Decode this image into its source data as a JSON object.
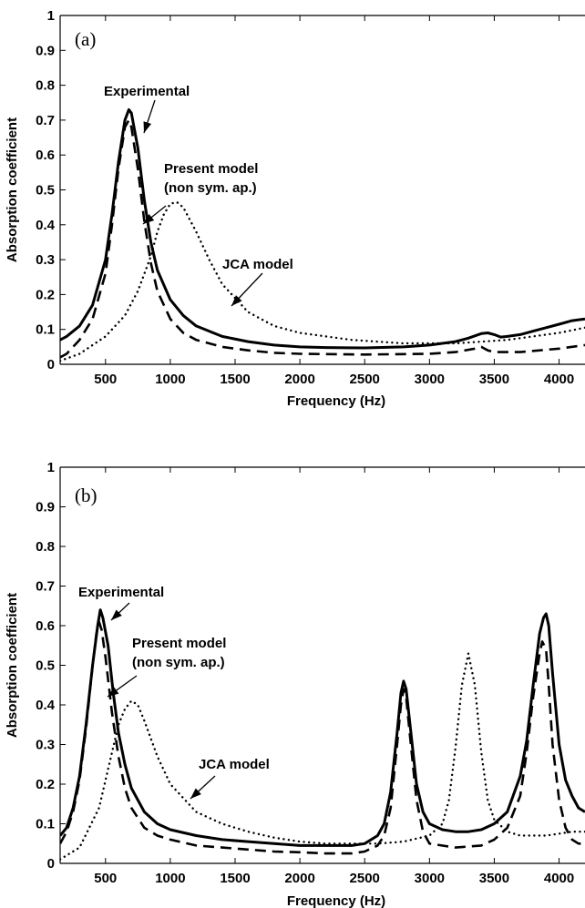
{
  "chart_data": [
    {
      "panel_label": "(a)",
      "type": "line",
      "xlabel": "Frequency (Hz)",
      "ylabel": "Absorption coefficient",
      "xlim": [
        150,
        4200
      ],
      "ylim": [
        0,
        1
      ],
      "xticks": [
        500,
        1000,
        1500,
        2000,
        2500,
        3000,
        3500,
        4000
      ],
      "yticks": [
        0,
        0.1,
        0.2,
        0.3,
        0.4,
        0.5,
        0.6,
        0.7,
        0.8,
        0.9,
        1
      ],
      "grid": false,
      "series": [
        {
          "name": "Experimental",
          "style": "solid",
          "x": [
            150,
            200,
            300,
            400,
            500,
            550,
            600,
            650,
            680,
            700,
            750,
            800,
            850,
            900,
            1000,
            1100,
            1200,
            1400,
            1600,
            1800,
            2000,
            2200,
            2500,
            2800,
            3000,
            3200,
            3300,
            3400,
            3450,
            3500,
            3550,
            3600,
            3700,
            3800,
            3900,
            4000,
            4100,
            4200
          ],
          "y": [
            0.07,
            0.08,
            0.11,
            0.17,
            0.3,
            0.43,
            0.58,
            0.7,
            0.73,
            0.72,
            0.62,
            0.47,
            0.35,
            0.27,
            0.185,
            0.14,
            0.11,
            0.08,
            0.065,
            0.055,
            0.05,
            0.048,
            0.047,
            0.05,
            0.055,
            0.065,
            0.075,
            0.088,
            0.09,
            0.085,
            0.078,
            0.08,
            0.085,
            0.095,
            0.105,
            0.115,
            0.125,
            0.13
          ]
        },
        {
          "name": "Present model (non sym. ap.)",
          "style": "dashed",
          "x": [
            150,
            200,
            300,
            400,
            500,
            550,
            600,
            650,
            680,
            700,
            750,
            800,
            850,
            900,
            1000,
            1100,
            1200,
            1400,
            1600,
            1800,
            2000,
            2500,
            3000,
            3200,
            3350,
            3400,
            3450,
            3500,
            3700,
            4000,
            4200
          ],
          "y": [
            0.02,
            0.03,
            0.07,
            0.13,
            0.26,
            0.4,
            0.56,
            0.68,
            0.7,
            0.68,
            0.56,
            0.41,
            0.29,
            0.21,
            0.13,
            0.09,
            0.07,
            0.05,
            0.04,
            0.033,
            0.03,
            0.028,
            0.03,
            0.035,
            0.045,
            0.05,
            0.04,
            0.035,
            0.035,
            0.045,
            0.055
          ]
        },
        {
          "name": "JCA model",
          "style": "dotted",
          "x": [
            150,
            300,
            500,
            650,
            750,
            850,
            900,
            950,
            1000,
            1050,
            1100,
            1200,
            1300,
            1400,
            1600,
            1800,
            2000,
            2400,
            2800,
            3200,
            3600,
            4000,
            4200
          ],
          "y": [
            0.01,
            0.03,
            0.08,
            0.14,
            0.21,
            0.31,
            0.38,
            0.43,
            0.46,
            0.465,
            0.45,
            0.38,
            0.3,
            0.23,
            0.15,
            0.11,
            0.09,
            0.07,
            0.06,
            0.06,
            0.07,
            0.09,
            0.105
          ]
        }
      ],
      "annotations": [
        {
          "lines": [
            "Experimental"
          ],
          "points_to_x": 680,
          "points_to_y": 0.68
        },
        {
          "lines": [
            "Present model",
            "(non sym. ap.)"
          ],
          "points_to_x": 780,
          "points_to_y": 0.44
        },
        {
          "lines": [
            "JCA model"
          ],
          "points_to_x": 1470,
          "points_to_y": 0.215
        }
      ]
    },
    {
      "panel_label": "(b)",
      "type": "line",
      "xlabel": "Frequency (Hz)",
      "ylabel": "Absorption coefficient",
      "xlim": [
        150,
        4200
      ],
      "ylim": [
        0,
        1
      ],
      "xticks": [
        500,
        1000,
        1500,
        2000,
        2500,
        3000,
        3500,
        4000
      ],
      "yticks": [
        0,
        0.1,
        0.2,
        0.3,
        0.4,
        0.5,
        0.6,
        0.7,
        0.8,
        0.9,
        1
      ],
      "grid": false,
      "series": [
        {
          "name": "Experimental",
          "style": "solid",
          "x": [
            150,
            200,
            250,
            300,
            350,
            400,
            440,
            460,
            480,
            520,
            560,
            600,
            650,
            700,
            800,
            900,
            1000,
            1200,
            1400,
            1600,
            1800,
            2000,
            2200,
            2400,
            2500,
            2600,
            2650,
            2700,
            2750,
            2780,
            2800,
            2820,
            2850,
            2900,
            2950,
            3000,
            3100,
            3200,
            3300,
            3400,
            3500,
            3600,
            3700,
            3750,
            3800,
            3850,
            3880,
            3900,
            3920,
            3950,
            4000,
            4050,
            4100,
            4150,
            4200
          ],
          "y": [
            0.07,
            0.09,
            0.14,
            0.22,
            0.35,
            0.5,
            0.6,
            0.64,
            0.62,
            0.55,
            0.43,
            0.33,
            0.25,
            0.19,
            0.13,
            0.1,
            0.085,
            0.07,
            0.06,
            0.055,
            0.05,
            0.045,
            0.045,
            0.045,
            0.05,
            0.07,
            0.1,
            0.18,
            0.33,
            0.43,
            0.46,
            0.44,
            0.35,
            0.2,
            0.13,
            0.1,
            0.085,
            0.08,
            0.08,
            0.085,
            0.1,
            0.13,
            0.22,
            0.31,
            0.45,
            0.58,
            0.62,
            0.63,
            0.6,
            0.48,
            0.3,
            0.21,
            0.17,
            0.14,
            0.13
          ]
        },
        {
          "name": "Present model (non sym. ap.)",
          "style": "dashed",
          "x": [
            150,
            200,
            250,
            300,
            350,
            400,
            430,
            450,
            470,
            500,
            550,
            600,
            650,
            700,
            800,
            900,
            1000,
            1200,
            1400,
            1600,
            1800,
            2000,
            2200,
            2400,
            2500,
            2600,
            2650,
            2700,
            2750,
            2780,
            2800,
            2820,
            2850,
            2900,
            2950,
            3000,
            3200,
            3400,
            3500,
            3600,
            3700,
            3750,
            3800,
            3850,
            3870,
            3900,
            3920,
            3950,
            4000,
            4050,
            4100,
            4150,
            4200
          ],
          "y": [
            0.05,
            0.08,
            0.13,
            0.21,
            0.34,
            0.5,
            0.58,
            0.61,
            0.59,
            0.52,
            0.38,
            0.27,
            0.19,
            0.14,
            0.09,
            0.07,
            0.06,
            0.045,
            0.04,
            0.035,
            0.03,
            0.028,
            0.025,
            0.025,
            0.03,
            0.045,
            0.07,
            0.14,
            0.3,
            0.4,
            0.44,
            0.42,
            0.32,
            0.16,
            0.08,
            0.05,
            0.04,
            0.045,
            0.06,
            0.09,
            0.17,
            0.28,
            0.42,
            0.53,
            0.56,
            0.54,
            0.45,
            0.3,
            0.16,
            0.09,
            0.06,
            0.05,
            0.05
          ]
        },
        {
          "name": "JCA model",
          "style": "dotted",
          "x": [
            150,
            300,
            450,
            550,
            600,
            650,
            700,
            750,
            800,
            900,
            1000,
            1200,
            1400,
            1600,
            1800,
            2000,
            2200,
            2400,
            2600,
            2800,
            3000,
            3100,
            3150,
            3200,
            3250,
            3300,
            3350,
            3400,
            3450,
            3500,
            3600,
            3700,
            3800,
            3900,
            4000,
            4100,
            4200
          ],
          "y": [
            0.01,
            0.04,
            0.14,
            0.28,
            0.35,
            0.39,
            0.41,
            0.4,
            0.36,
            0.27,
            0.2,
            0.13,
            0.1,
            0.08,
            0.065,
            0.055,
            0.05,
            0.05,
            0.05,
            0.055,
            0.07,
            0.1,
            0.16,
            0.29,
            0.45,
            0.53,
            0.45,
            0.28,
            0.16,
            0.11,
            0.08,
            0.07,
            0.07,
            0.07,
            0.075,
            0.08,
            0.08
          ]
        }
      ],
      "annotations": [
        {
          "lines": [
            "Experimental"
          ],
          "points_to_x": 480,
          "points_to_y": 0.6
        },
        {
          "lines": [
            "Present model",
            "(non sym. ap.)"
          ],
          "points_to_x": 560,
          "points_to_y": 0.42
        },
        {
          "lines": [
            "JCA model"
          ],
          "points_to_x": 1180,
          "points_to_y": 0.19
        }
      ]
    }
  ]
}
